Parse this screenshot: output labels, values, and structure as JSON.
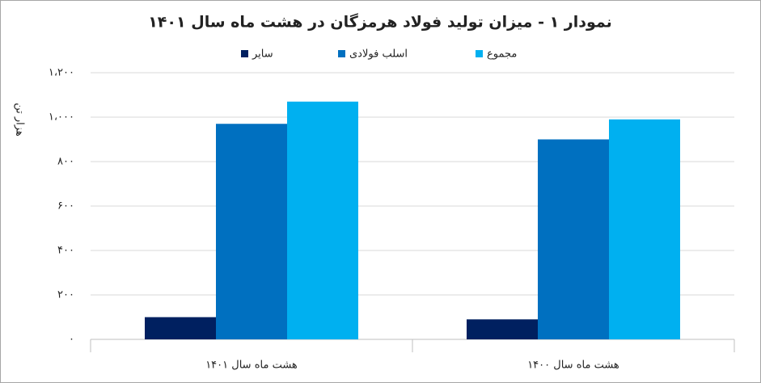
{
  "chart_data": {
    "type": "bar",
    "title": "نمودار ۱ - میزان تولید فولاد هرمزگان در هشت ماه سال ۱۴۰۱",
    "y_label": "هزار تن",
    "categories": [
      "هشت ماه سال ۱۴۰۱",
      "هشت ماه سال ۱۴۰۰"
    ],
    "series": [
      {
        "name": "سایر",
        "color": "#002060",
        "values": [
          100,
          90
        ]
      },
      {
        "name": "اسلب فولادی",
        "color": "#0070c0",
        "values": [
          970,
          900
        ]
      },
      {
        "name": "مجموع",
        "color": "#00b0f0",
        "values": [
          1070,
          990
        ]
      }
    ],
    "ylim": [
      0,
      1200
    ],
    "yticks": [
      {
        "value": 0,
        "label": "۰"
      },
      {
        "value": 200,
        "label": "۲۰۰"
      },
      {
        "value": 400,
        "label": "۴۰۰"
      },
      {
        "value": 600,
        "label": "۶۰۰"
      },
      {
        "value": 800,
        "label": "۸۰۰"
      },
      {
        "value": 1000,
        "label": "۱،۰۰۰"
      },
      {
        "value": 1200,
        "label": "۱،۲۰۰"
      }
    ],
    "grid": true
  }
}
